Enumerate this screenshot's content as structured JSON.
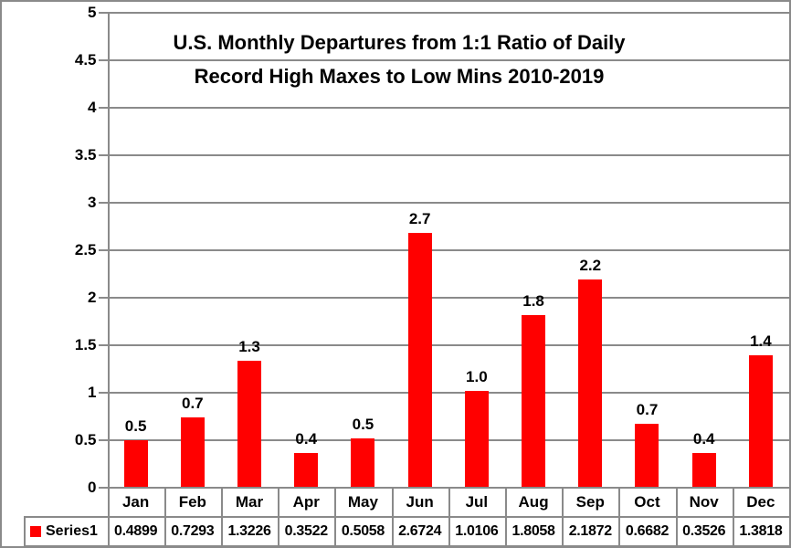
{
  "window": {
    "background": "#ffffff",
    "border_color": "#8a8a8a"
  },
  "chart_data": {
    "type": "bar",
    "title_line1": "U.S. Monthly Departures from 1:1 Ratio of Daily",
    "title_line2": "Record High Maxes to Low Mins 2010-2019",
    "categories": [
      "Jan",
      "Feb",
      "Mar",
      "Apr",
      "May",
      "Jun",
      "Jul",
      "Aug",
      "Sep",
      "Oct",
      "Nov",
      "Dec"
    ],
    "series": [
      {
        "name": "Series1",
        "color": "#ff0000",
        "values": [
          0.4899,
          0.7293,
          1.3226,
          0.3522,
          0.5058,
          2.6724,
          1.0106,
          1.8058,
          2.1872,
          0.6682,
          0.3526,
          1.3818
        ],
        "value_labels": [
          "0.4899",
          "0.7293",
          "1.3226",
          "0.3522",
          "0.5058",
          "2.6724",
          "1.0106",
          "1.8058",
          "2.1872",
          "0.6682",
          "0.3526",
          "1.3818"
        ],
        "bar_labels": [
          "0.5",
          "0.7",
          "1.3",
          "0.4",
          "0.5",
          "2.7",
          "1.0",
          "1.8",
          "2.2",
          "0.7",
          "0.4",
          "1.4"
        ]
      }
    ],
    "ylim": [
      0,
      5
    ],
    "ytick_step": 0.5,
    "ytick_labels": [
      "5",
      "4.5",
      "4",
      "3.5",
      "3",
      "2.5",
      "2",
      "1.5",
      "1",
      "0.5",
      "0"
    ],
    "grid": true,
    "legend_position": "data-table-left",
    "colors": {
      "bar": "#ff0000",
      "gridline": "#8a8a8a",
      "text": "#000000"
    }
  }
}
